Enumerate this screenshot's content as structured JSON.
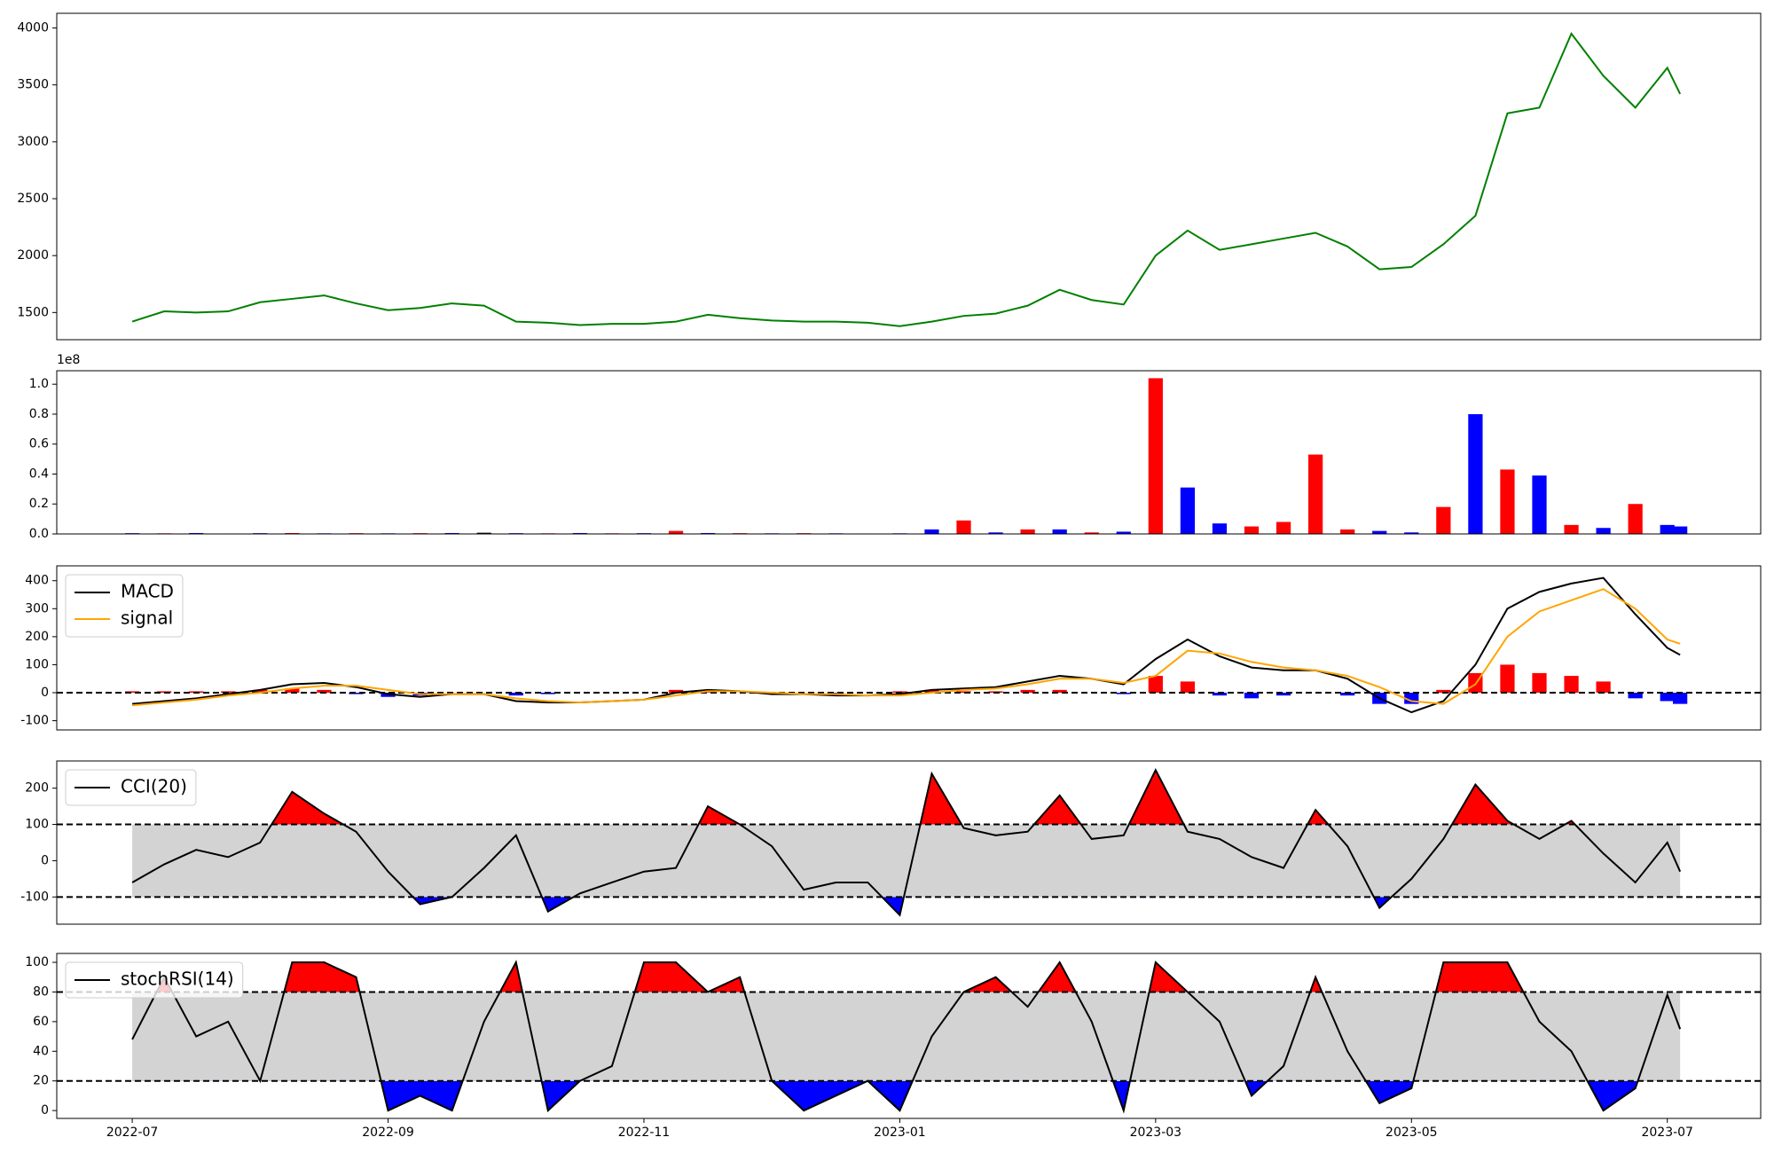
{
  "chart_data": [
    {
      "type": "line",
      "x": [
        0,
        0.25,
        0.5,
        0.75,
        1,
        1.25,
        1.5,
        1.75,
        2,
        2.25,
        2.5,
        2.75,
        3,
        3.25,
        3.5,
        3.75,
        4,
        4.25,
        4.5,
        4.75,
        5,
        5.25,
        5.5,
        5.75,
        6,
        6.25,
        6.5,
        6.75,
        7,
        7.25,
        7.5,
        7.75,
        8,
        8.25,
        8.5,
        8.75,
        9,
        9.25,
        9.5,
        9.75,
        10,
        10.25,
        10.5,
        10.75,
        11,
        11.25,
        11.5,
        11.75,
        12,
        12.1
      ],
      "xlim": [
        -0.59,
        12.73
      ],
      "series": [
        {
          "color": "green",
          "values": [
            1420,
            1510,
            1500,
            1510,
            1590,
            1620,
            1650,
            1580,
            1520,
            1540,
            1580,
            1560,
            1420,
            1410,
            1390,
            1400,
            1400,
            1420,
            1480,
            1450,
            1430,
            1420,
            1420,
            1410,
            1380,
            1420,
            1470,
            1490,
            1560,
            1700,
            1610,
            1570,
            2000,
            2220,
            2050,
            2100,
            2150,
            2200,
            2080,
            1880,
            1900,
            2100,
            2350,
            3250,
            3300,
            3950,
            3580,
            3300,
            3650,
            3420
          ]
        }
      ],
      "ylim": [
        1261,
        4129
      ],
      "yticks": [
        1500,
        2000,
        2500,
        3000,
        3500,
        4000
      ]
    },
    {
      "type": "bar",
      "x": [
        0,
        0.25,
        0.5,
        0.75,
        1,
        1.25,
        1.5,
        1.75,
        2,
        2.25,
        2.5,
        2.75,
        3,
        3.25,
        3.5,
        3.75,
        4,
        4.25,
        4.5,
        4.75,
        5,
        5.25,
        5.5,
        5.75,
        6,
        6.25,
        6.5,
        6.75,
        7,
        7.25,
        7.5,
        7.75,
        8,
        8.25,
        8.5,
        8.75,
        9,
        9.25,
        9.5,
        9.75,
        10,
        10.25,
        10.5,
        10.75,
        11,
        11.25,
        11.5,
        11.75,
        12,
        12.1
      ],
      "xlim": [
        -0.59,
        12.73
      ],
      "values": [
        0.005,
        0.004,
        0.006,
        0.003,
        0.005,
        0.006,
        0.004,
        0.005,
        0.004,
        0.005,
        0.006,
        0.008,
        0.005,
        0.004,
        0.006,
        0.004,
        0.005,
        0.02,
        0.006,
        0.005,
        0.004,
        0.005,
        0.004,
        0.003,
        0.004,
        0.03,
        0.09,
        0.01,
        0.03,
        0.03,
        0.01,
        0.015,
        1.04,
        0.31,
        0.07,
        0.05,
        0.08,
        0.53,
        0.03,
        0.02,
        0.01,
        0.18,
        0.8,
        0.43,
        0.39,
        0.06,
        0.04,
        0.2,
        0.06,
        0.05
      ],
      "colors": [
        "blue",
        "red",
        "blue",
        "red",
        "blue",
        "red",
        "blue",
        "red",
        "blue",
        "red",
        "blue",
        "black",
        "blue",
        "red",
        "blue",
        "red",
        "blue",
        "red",
        "blue",
        "red",
        "blue",
        "red",
        "blue",
        "red",
        "blue",
        "blue",
        "red",
        "blue",
        "red",
        "blue",
        "red",
        "blue",
        "red",
        "blue",
        "blue",
        "red",
        "red",
        "red",
        "red",
        "blue",
        "blue",
        "red",
        "blue",
        "red",
        "blue",
        "red",
        "blue",
        "red",
        "blue",
        "blue"
      ],
      "ylim": [
        0,
        1.09
      ],
      "yticks": [
        {
          "value": 0,
          "label": "0.0"
        },
        0.2,
        0.4,
        0.6,
        0.8,
        {
          "value": 1,
          "label": "1.0"
        }
      ],
      "offset_label": "1e8"
    },
    {
      "type": "line",
      "x": [
        0,
        0.25,
        0.5,
        0.75,
        1,
        1.25,
        1.5,
        1.75,
        2,
        2.25,
        2.5,
        2.75,
        3,
        3.25,
        3.5,
        3.75,
        4,
        4.25,
        4.5,
        4.75,
        5,
        5.25,
        5.5,
        5.75,
        6,
        6.25,
        6.5,
        6.75,
        7,
        7.25,
        7.5,
        7.75,
        8,
        8.25,
        8.5,
        8.75,
        9,
        9.25,
        9.5,
        9.75,
        10,
        10.25,
        10.5,
        10.75,
        11,
        11.25,
        11.5,
        11.75,
        12,
        12.1
      ],
      "xlim": [
        -0.59,
        12.73
      ],
      "series": [
        {
          "kind": "bar",
          "up_color": "red",
          "down_color": "blue",
          "values": [
            5,
            5,
            5,
            5,
            10,
            15,
            10,
            -5,
            -15,
            -10,
            0,
            0,
            -10,
            -5,
            0,
            0,
            0,
            10,
            5,
            0,
            -5,
            0,
            -5,
            0,
            5,
            10,
            5,
            5,
            10,
            10,
            0,
            -5,
            60,
            40,
            -10,
            -20,
            -10,
            0,
            -10,
            -40,
            -40,
            10,
            70,
            100,
            70,
            60,
            40,
            -20,
            -30,
            -40
          ]
        },
        {
          "name": "MACD",
          "color": "black",
          "values": [
            -40,
            -30,
            -20,
            -5,
            10,
            30,
            35,
            20,
            -5,
            -15,
            -5,
            -5,
            -30,
            -35,
            -35,
            -30,
            -25,
            0,
            10,
            5,
            -5,
            -5,
            -10,
            -10,
            -5,
            10,
            15,
            20,
            40,
            60,
            50,
            30,
            120,
            190,
            130,
            90,
            80,
            80,
            50,
            -20,
            -70,
            -30,
            100,
            300,
            360,
            390,
            410,
            280,
            160,
            135
          ]
        },
        {
          "name": "signal",
          "color": "orange",
          "values": [
            -45,
            -35,
            -25,
            -10,
            0,
            15,
            25,
            25,
            10,
            -5,
            -5,
            -5,
            -20,
            -30,
            -35,
            -30,
            -25,
            -10,
            5,
            5,
            0,
            -5,
            -5,
            -10,
            -10,
            0,
            10,
            15,
            30,
            50,
            50,
            35,
            60,
            150,
            140,
            110,
            90,
            80,
            60,
            20,
            -30,
            -40,
            30,
            200,
            290,
            330,
            370,
            300,
            190,
            175
          ]
        }
      ],
      "hlines": [
        0
      ],
      "legend": "upper left",
      "ylim": [
        -133,
        453
      ],
      "yticks": [
        -100,
        0,
        100,
        200,
        300,
        400
      ]
    },
    {
      "type": "line",
      "x": [
        0,
        0.25,
        0.5,
        0.75,
        1,
        1.25,
        1.5,
        1.75,
        2,
        2.25,
        2.5,
        2.75,
        3,
        3.25,
        3.5,
        3.75,
        4,
        4.25,
        4.5,
        4.75,
        5,
        5.25,
        5.5,
        5.75,
        6,
        6.25,
        6.5,
        6.75,
        7,
        7.25,
        7.5,
        7.75,
        8,
        8.25,
        8.5,
        8.75,
        9,
        9.25,
        9.5,
        9.75,
        10,
        10.25,
        10.5,
        10.75,
        11,
        11.25,
        11.5,
        11.75,
        12,
        12.1
      ],
      "xlim": [
        -0.59,
        12.73
      ],
      "series": [
        {
          "name": "CCI(20)",
          "color": "black",
          "values": [
            -60,
            -10,
            30,
            10,
            50,
            190,
            130,
            80,
            -30,
            -120,
            -100,
            -20,
            70,
            -140,
            -90,
            -60,
            -30,
            -20,
            150,
            100,
            40,
            -80,
            -60,
            -60,
            -150,
            240,
            90,
            70,
            80,
            180,
            60,
            70,
            250,
            80,
            60,
            10,
            -20,
            140,
            40,
            -130,
            -50,
            60,
            210,
            110,
            60,
            110,
            20,
            -60,
            50,
            -30
          ]
        }
      ],
      "hlines": [
        100,
        -100
      ],
      "band_color": "lightgray",
      "above_color": "red",
      "below_color": "blue",
      "legend": "upper left",
      "ylim": [
        -175,
        275
      ],
      "yticks": [
        -100,
        0,
        100,
        200
      ]
    },
    {
      "type": "line",
      "x": [
        0,
        0.25,
        0.5,
        0.75,
        1,
        1.25,
        1.5,
        1.75,
        2,
        2.25,
        2.5,
        2.75,
        3,
        3.25,
        3.5,
        3.75,
        4,
        4.25,
        4.5,
        4.75,
        5,
        5.25,
        5.5,
        5.75,
        6,
        6.25,
        6.5,
        6.75,
        7,
        7.25,
        7.5,
        7.75,
        8,
        8.25,
        8.5,
        8.75,
        9,
        9.25,
        9.5,
        9.75,
        10,
        10.25,
        10.5,
        10.75,
        11,
        11.25,
        11.5,
        11.75,
        12,
        12.1
      ],
      "xlim": [
        -0.59,
        12.73
      ],
      "series": [
        {
          "name": "stochRSI(14)",
          "color": "black",
          "values": [
            48,
            90,
            50,
            60,
            20,
            100,
            100,
            90,
            0,
            10,
            0,
            60,
            100,
            0,
            20,
            30,
            100,
            100,
            80,
            90,
            20,
            0,
            10,
            20,
            0,
            50,
            80,
            90,
            70,
            100,
            60,
            0,
            100,
            80,
            60,
            10,
            30,
            90,
            40,
            5,
            15,
            100,
            100,
            100,
            60,
            40,
            0,
            15,
            78,
            55
          ]
        }
      ],
      "hlines": [
        80,
        20
      ],
      "band_color": "lightgray",
      "above_color": "red",
      "below_color": "blue",
      "legend": "upper left",
      "ylim": [
        -5.3,
        106
      ],
      "yticks": [
        0,
        20,
        40,
        60,
        80,
        100
      ],
      "xticks": [
        {
          "value": 0,
          "label": "2022-07"
        },
        {
          "value": 2,
          "label": "2022-09"
        },
        {
          "value": 4,
          "label": "2022-11"
        },
        {
          "value": 6,
          "label": "2023-01"
        },
        {
          "value": 8,
          "label": "2023-03"
        },
        {
          "value": 10,
          "label": "2023-05"
        },
        {
          "value": 12,
          "label": "2023-07"
        }
      ]
    }
  ]
}
